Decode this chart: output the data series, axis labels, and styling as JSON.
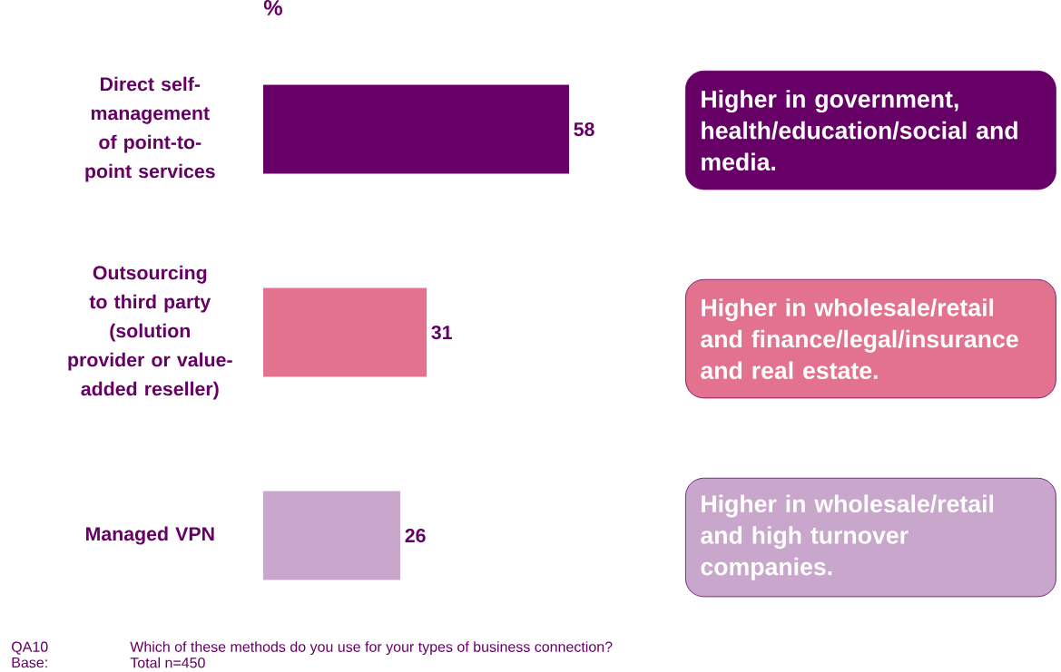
{
  "chart_data": {
    "type": "bar",
    "orientation": "horizontal",
    "xlabel": "%",
    "categories": [
      "Direct self-management of point-to-point services",
      "Outsourcing to third party (solution provider or value-added reseller)",
      "Managed VPN"
    ],
    "values": [
      58,
      31,
      26
    ],
    "colors": [
      "#660066",
      "#e2728e",
      "#c9a6cb"
    ],
    "data_labels": true,
    "annotations": [
      "Higher in government, health/education/social and media.",
      "Higher in wholesale/retail and finance/legal/insurance and real estate.",
      "Higher in wholesale/retail and high turnover companies.",
      "QA10",
      "Which of these methods do you use for your types of business connection?",
      "Base:",
      "Total n=450"
    ]
  }
}
